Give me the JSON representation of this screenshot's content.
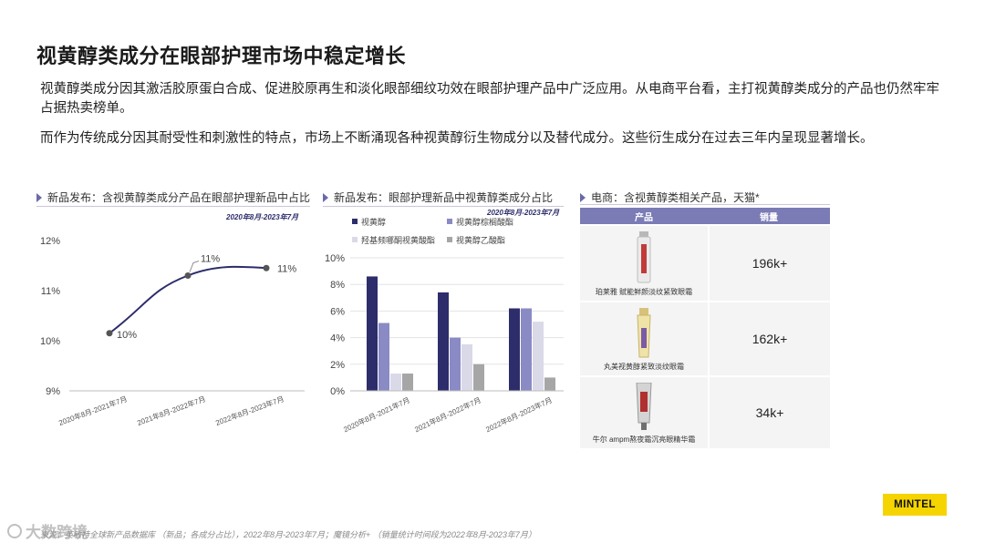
{
  "page": {
    "title": "视黄醇类成分在眼部护理市场中稳定增长",
    "para1": "视黄醇类成分因其激活胶原蛋白合成、促进胶原再生和淡化眼部细纹功效在眼部护理产品中广泛应用。从电商平台看，主打视黄醇类成分的产品也仍然牢牢占据热卖榜单。",
    "para2": "而作为传统成分因其耐受性和刺激性的特点，市场上不断涌现各种视黄醇衍生物成分以及替代成分。这些衍生成分在过去三年内呈现显著增长。",
    "logo": "MINTEL",
    "source": "来源：英敏特全球新产品数据库 （新品；各成分占比），2022年8月-2023年7月；魔镜分析+ （销量统计时间段为2022年8月-2023年7月）",
    "watermark": "大数跨境"
  },
  "colors": {
    "line": "#2d2d6b",
    "series": [
      "#2d2d6b",
      "#8a8ac4",
      "#d9d9e8",
      "#a6a6a6"
    ],
    "table_header": "#7b7bb6"
  },
  "panel1": {
    "heading": "新品发布：含视黄醇类成分产品在眼部护理新品中占比",
    "period": "2020年8月-2023年7月"
  },
  "panel2": {
    "heading": "新品发布：眼部护理新品中视黄醇类成分占比",
    "period": "2020年8月-2023年7月"
  },
  "panel3": {
    "heading": "电商：含视黄醇类相关产品，天猫*",
    "col_product": "产品",
    "col_sales": "销量",
    "rows": [
      {
        "product": "珀莱雅 赋能鲜颜淡纹紧致眼霜",
        "sales": "196k+"
      },
      {
        "product": "丸美视黄醇紧致淡纹眼霜",
        "sales": "162k+"
      },
      {
        "product": "牛尔 ampm熬夜霜沉亮眼精华霜",
        "sales": "34k+"
      }
    ]
  },
  "chart_data": [
    {
      "type": "line",
      "categories": [
        "2020年8月-2021年7月",
        "2021年8月-2022年7月",
        "2022年8月-2023年7月"
      ],
      "values": [
        10.15,
        11.3,
        11.45
      ],
      "labels": [
        "10%",
        "11%",
        "11%"
      ],
      "yticks": [
        "12%",
        "11%",
        "10%",
        "9%"
      ],
      "ylim": [
        9,
        12
      ],
      "grid": false
    },
    {
      "type": "bar",
      "categories": [
        "2020年8月-2021年7月",
        "2021年8月-2022年7月",
        "2022年8月-2023年7月"
      ],
      "series": [
        {
          "name": "视黄醇",
          "values": [
            8.6,
            7.4,
            6.2
          ]
        },
        {
          "name": "视黄醇棕榈酸酯",
          "values": [
            5.1,
            4.0,
            6.2
          ]
        },
        {
          "name": "羟基频哪酮视黄酸酯",
          "values": [
            1.3,
            3.5,
            5.2
          ]
        },
        {
          "name": "视黄醇乙酸酯",
          "values": [
            1.3,
            2.0,
            1.0
          ]
        }
      ],
      "yticks": [
        "10%",
        "8%",
        "6%",
        "4%",
        "2%",
        "0%"
      ],
      "ylim": [
        0,
        10
      ],
      "grid": true,
      "legend": "top"
    }
  ]
}
